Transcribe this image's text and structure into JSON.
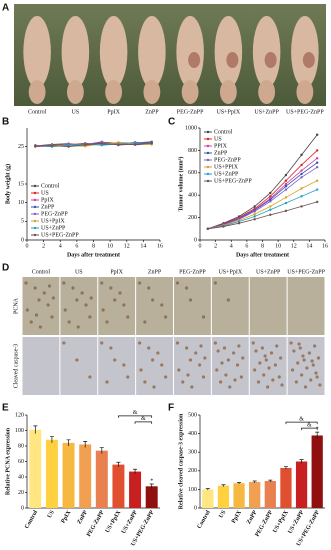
{
  "panel_labels": [
    "A",
    "B",
    "C",
    "D",
    "E",
    "F"
  ],
  "photo_labels": [
    "Control",
    "US",
    "PpIX",
    "ZnPP",
    "PEG-ZnPP",
    "US+PpIX",
    "US+ZnPP",
    "US+PEG-ZnPP"
  ],
  "micrograph": {
    "columns": [
      "Control",
      "US",
      "PpIX",
      "ZnPP",
      "PEG-ZnPP",
      "US+PpIX",
      "US+ZnPP",
      "US+PEG-ZnPP"
    ],
    "rows": [
      "PCNA",
      "Cleaved caspase-3"
    ]
  },
  "chart_data": [
    {
      "type": "line",
      "x_label": "Days after treatment",
      "y_label": "Body weight (g)",
      "xlim": [
        0,
        16
      ],
      "xticks": [
        0,
        2,
        4,
        6,
        8,
        10,
        12,
        14,
        16
      ],
      "ylim": [
        0,
        30
      ],
      "yticks": [
        0,
        5,
        10,
        15,
        25
      ],
      "legend": "lower left",
      "x": [
        1,
        3,
        5,
        7,
        9,
        11,
        13,
        15
      ],
      "series": [
        {
          "name": "Control",
          "color": "#444444",
          "values": [
            25.2,
            25.6,
            25.8,
            25.4,
            26.2,
            25.9,
            26.0,
            26.3
          ]
        },
        {
          "name": "US",
          "color": "#e02020",
          "values": [
            25.0,
            25.3,
            25.5,
            25.9,
            25.6,
            26.1,
            25.8,
            26.0
          ]
        },
        {
          "name": "PpIX",
          "color": "#d040a0",
          "values": [
            25.4,
            25.1,
            25.7,
            25.3,
            26.0,
            25.6,
            26.2,
            25.9
          ]
        },
        {
          "name": "ZnPP",
          "color": "#3050c0",
          "values": [
            25.1,
            25.5,
            25.2,
            25.8,
            25.5,
            25.8,
            25.5,
            25.7
          ]
        },
        {
          "name": "PEG-ZnPP",
          "color": "#8060c0",
          "values": [
            25.3,
            25.2,
            25.6,
            25.6,
            26.3,
            25.4,
            25.9,
            26.1
          ]
        },
        {
          "name": "US+PpIX",
          "color": "#e0a020",
          "values": [
            25.0,
            25.4,
            25.3,
            25.1,
            25.8,
            26.0,
            25.7,
            25.6
          ]
        },
        {
          "name": "US+ZnPP",
          "color": "#20a0c0",
          "values": [
            25.2,
            25.0,
            25.4,
            25.7,
            25.4,
            25.7,
            26.1,
            25.8
          ]
        },
        {
          "name": "US+PEG-ZnPP",
          "color": "#705050",
          "values": [
            25.1,
            25.3,
            25.0,
            25.5,
            25.9,
            25.5,
            25.6,
            26.0
          ]
        }
      ]
    },
    {
      "type": "line",
      "x_label": "Days after treatment",
      "y_label": "Tumor volume (mm³)",
      "xlim": [
        0,
        16
      ],
      "xticks": [
        0,
        2,
        4,
        6,
        8,
        10,
        12,
        14,
        16
      ],
      "ylim": [
        0,
        1000
      ],
      "yticks": [
        0,
        200,
        400,
        600,
        800,
        1000
      ],
      "legend": "upper left",
      "x": [
        1,
        3,
        5,
        7,
        9,
        11,
        13,
        15
      ],
      "series": [
        {
          "name": "Control",
          "color": "#444444",
          "values": [
            100,
            150,
            210,
            300,
            420,
            580,
            760,
            940
          ]
        },
        {
          "name": "US",
          "color": "#e02020",
          "values": [
            100,
            145,
            200,
            280,
            390,
            530,
            670,
            800
          ]
        },
        {
          "name": "PPIX",
          "color": "#d040a0",
          "values": [
            100,
            140,
            195,
            270,
            370,
            500,
            620,
            730
          ]
        },
        {
          "name": "ZnPP",
          "color": "#3050c0",
          "values": [
            100,
            140,
            190,
            265,
            360,
            480,
            590,
            690
          ]
        },
        {
          "name": "PEG-ZnPP",
          "color": "#8060c0",
          "values": [
            100,
            135,
            185,
            255,
            345,
            450,
            560,
            650
          ]
        },
        {
          "name": "US+PPIX",
          "color": "#e0a020",
          "values": [
            100,
            130,
            175,
            230,
            300,
            380,
            460,
            530
          ]
        },
        {
          "name": "US+ZnPP",
          "color": "#20a0c0",
          "values": [
            100,
            125,
            165,
            210,
            270,
            330,
            390,
            450
          ]
        },
        {
          "name": "US+PEG-ZnPP",
          "color": "#705050",
          "values": [
            100,
            120,
            150,
            185,
            225,
            260,
            300,
            340
          ]
        }
      ]
    },
    {
      "type": "bar",
      "y_label": "Relative PCNA expression",
      "categories": [
        "Control",
        "US",
        "PpIX",
        "ZnPP",
        "PEG-ZnPP",
        "US+PpIX",
        "US+ZnPP",
        "US+PEG-ZnPP"
      ],
      "values": [
        101,
        88,
        84,
        82,
        74,
        56,
        47,
        28
      ],
      "errors": [
        5,
        4,
        4,
        4,
        4,
        3,
        3,
        3
      ],
      "colors": [
        "#ffe680",
        "#ffd040",
        "#f6b840",
        "#f0a050",
        "#e88050",
        "#e05030",
        "#c82020",
        "#901010"
      ],
      "ylim": [
        0,
        120
      ],
      "yticks": [
        0,
        20,
        40,
        60,
        80,
        100,
        120
      ],
      "annotations": [
        "&",
        "&",
        "*"
      ]
    },
    {
      "type": "bar",
      "y_label": "Relative cleaved caspase-3 expression",
      "categories": [
        "Control",
        "US",
        "PpIX",
        "ZnPP",
        "PEG-ZnPP",
        "US+PpIX",
        "US+ZnPP",
        "US+PEG-ZnPP"
      ],
      "values": [
        100,
        120,
        133,
        140,
        145,
        215,
        250,
        390
      ],
      "errors": [
        4,
        5,
        4,
        5,
        5,
        7,
        10,
        18
      ],
      "colors": [
        "#ffe680",
        "#ffd040",
        "#f6b840",
        "#f0a050",
        "#e88050",
        "#e05030",
        "#c82020",
        "#901010"
      ],
      "ylim": [
        0,
        500
      ],
      "yticks": [
        0,
        100,
        200,
        300,
        400,
        500
      ],
      "annotations": [
        "&",
        "&",
        "*"
      ]
    }
  ]
}
